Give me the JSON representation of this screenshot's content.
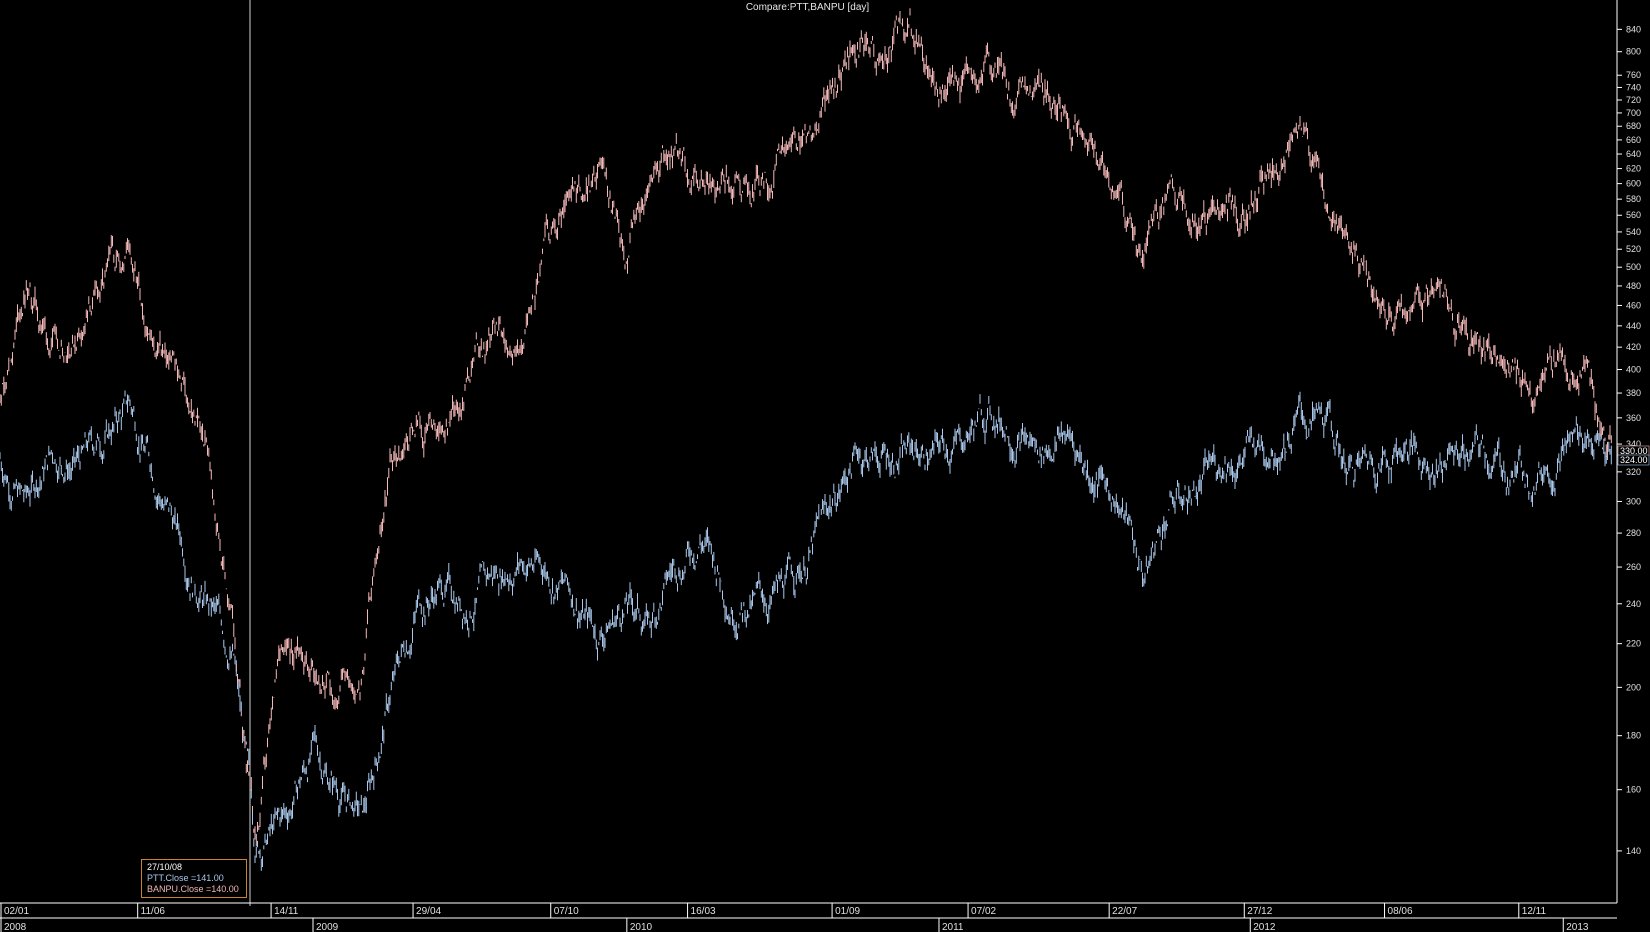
{
  "title": "Compare:PTT,BANPU [day]",
  "colors": {
    "ptt": "#a9c8ec",
    "banpu": "#f3b8b8",
    "axis": "#ffffff",
    "crosshair": "#cfcfcf",
    "tooltip_border": "#c8852a"
  },
  "tooltip": {
    "date": "27/10/08",
    "ptt": "PTT.Close  =141.00",
    "banpu": "BANPU.Close  =140.00"
  },
  "last_labels": {
    "banpu": "330.00",
    "ptt": "324.00"
  },
  "x_top_labels": [
    "02/01",
    "11/06",
    "14/11",
    "29/04",
    "07/10",
    "16/03",
    "01/09",
    "07/02",
    "22/07",
    "27/12",
    "08/06",
    "12/11"
  ],
  "x_bottom_labels": [
    "2008",
    "2009",
    "2010",
    "2011",
    "2012",
    "2013"
  ],
  "chart_data": {
    "type": "line",
    "title": "Compare:PTT,BANPU [day]",
    "y_scale": "log",
    "ylim": [
      128,
      880
    ],
    "y_ticks": [
      140,
      160,
      180,
      200,
      220,
      240,
      260,
      280,
      300,
      320,
      340,
      360,
      380,
      400,
      420,
      440,
      460,
      480,
      500,
      520,
      540,
      560,
      580,
      600,
      620,
      640,
      660,
      680,
      700,
      720,
      740,
      760,
      800,
      840
    ],
    "crosshair_date": "27/10/08",
    "series": [
      {
        "name": "PTT",
        "x": [
          "2008-01-02",
          "2008-02-01",
          "2008-03-03",
          "2008-04-01",
          "2008-05-02",
          "2008-06-02",
          "2008-07-01",
          "2008-08-01",
          "2008-09-01",
          "2008-10-01",
          "2008-10-27",
          "2008-12-01",
          "2009-01-02",
          "2009-02-02",
          "2009-03-02",
          "2009-04-01",
          "2009-05-04",
          "2009-06-01",
          "2009-07-01",
          "2009-08-03",
          "2009-09-01",
          "2009-10-01",
          "2009-11-02",
          "2009-12-01",
          "2010-01-04",
          "2010-02-01",
          "2010-03-01",
          "2010-04-01",
          "2010-05-03",
          "2010-06-01",
          "2010-07-01",
          "2010-08-02",
          "2010-09-01",
          "2010-10-01",
          "2010-11-01",
          "2010-12-01",
          "2011-01-04",
          "2011-02-01",
          "2011-03-01",
          "2011-04-01",
          "2011-05-02",
          "2011-06-01",
          "2011-07-01",
          "2011-08-01",
          "2011-09-01",
          "2011-10-03",
          "2011-11-01",
          "2011-12-01",
          "2012-01-03",
          "2012-02-01",
          "2012-03-01",
          "2012-04-02",
          "2012-05-02",
          "2012-06-01",
          "2012-07-02",
          "2012-08-01",
          "2012-09-03",
          "2012-10-01",
          "2012-11-01",
          "2012-12-03",
          "2013-01-03",
          "2013-02-01",
          "2013-03-01"
        ],
        "values": [
          330,
          300,
          335,
          325,
          345,
          370,
          320,
          275,
          240,
          215,
          141,
          150,
          175,
          160,
          150,
          195,
          240,
          250,
          240,
          255,
          265,
          260,
          245,
          225,
          240,
          230,
          260,
          280,
          245,
          240,
          245,
          265,
          300,
          335,
          330,
          335,
          335,
          345,
          365,
          355,
          335,
          350,
          320,
          305,
          255,
          300,
          310,
          330,
          335,
          345,
          360,
          350,
          320,
          330,
          340,
          325,
          335,
          330,
          320,
          325,
          335,
          355,
          324
        ]
      },
      {
        "name": "BANPU",
        "x": [
          "2008-01-02",
          "2008-02-01",
          "2008-03-03",
          "2008-04-01",
          "2008-05-02",
          "2008-06-02",
          "2008-07-01",
          "2008-08-01",
          "2008-09-01",
          "2008-10-01",
          "2008-10-27",
          "2008-12-01",
          "2009-01-02",
          "2009-02-02",
          "2009-03-02",
          "2009-04-01",
          "2009-05-04",
          "2009-06-01",
          "2009-07-01",
          "2009-08-03",
          "2009-09-01",
          "2009-10-01",
          "2009-11-02",
          "2009-12-01",
          "2010-01-04",
          "2010-02-01",
          "2010-03-01",
          "2010-04-01",
          "2010-05-03",
          "2010-06-01",
          "2010-07-01",
          "2010-08-02",
          "2010-09-01",
          "2010-10-01",
          "2010-11-01",
          "2010-12-01",
          "2011-01-04",
          "2011-02-01",
          "2011-03-01",
          "2011-04-01",
          "2011-05-02",
          "2011-06-01",
          "2011-07-01",
          "2011-08-01",
          "2011-09-01",
          "2011-10-03",
          "2011-11-01",
          "2011-12-01",
          "2012-01-03",
          "2012-02-01",
          "2012-03-01",
          "2012-04-02",
          "2012-05-02",
          "2012-06-01",
          "2012-07-02",
          "2012-08-01",
          "2012-09-03",
          "2012-10-01",
          "2012-11-01",
          "2012-12-03",
          "2013-01-03",
          "2013-02-01",
          "2013-03-01"
        ],
        "values": [
          385,
          480,
          420,
          440,
          470,
          530,
          420,
          390,
          330,
          230,
          140,
          225,
          210,
          200,
          215,
          320,
          360,
          330,
          410,
          440,
          420,
          520,
          560,
          620,
          520,
          610,
          640,
          600,
          620,
          610,
          615,
          650,
          740,
          800,
          780,
          840,
          730,
          740,
          780,
          720,
          730,
          720,
          640,
          590,
          510,
          600,
          560,
          550,
          580,
          620,
          660,
          590,
          520,
          460,
          440,
          470,
          440,
          420,
          395,
          380,
          420,
          390,
          330
        ]
      }
    ]
  }
}
